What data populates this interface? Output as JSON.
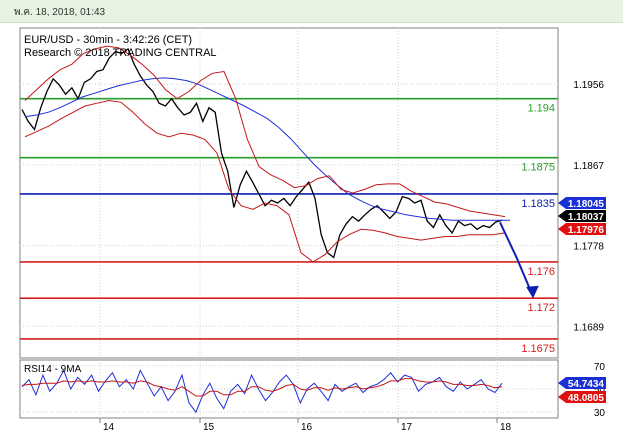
{
  "header": {
    "timestamp": "พ.ค. 18, 2018, 01:43"
  },
  "chart_data": [
    {
      "type": "line",
      "title": "EUR/USD - 30min - 3:42:26 (CET)",
      "subtitle": "Research © 2018 TRADING CENTRAL",
      "ylim": [
        1.1654,
        1.2018
      ],
      "y_ticks": [
        1.1956,
        1.1867,
        1.1778,
        1.1689
      ],
      "x_ticks": [
        "14",
        "15",
        "16",
        "17",
        "18"
      ],
      "levels": [
        {
          "value": 1.194,
          "label": "1.194",
          "color": "#2a9d2a"
        },
        {
          "value": 1.1875,
          "label": "1.1875",
          "color": "#2a9d2a"
        },
        {
          "value": 1.1835,
          "label": "1.1835",
          "color": "#0b1fb0"
        },
        {
          "value": 1.176,
          "label": "1.176",
          "color": "#d42020"
        },
        {
          "value": 1.172,
          "label": "1.172",
          "color": "#d42020"
        },
        {
          "value": 1.1675,
          "label": "1.1675",
          "color": "#d42020"
        }
      ],
      "price_tags": [
        {
          "label": "1.18045",
          "value": 1.18045,
          "color": "#1b2fd6"
        },
        {
          "label": "1.18037",
          "value": 1.18037,
          "color": "#000000"
        },
        {
          "label": "1.17976",
          "value": 1.17976,
          "color": "#e01010"
        }
      ],
      "series": [
        {
          "name": "",
          "color": "#000000",
          "values": [
            1.1928,
            1.1915,
            1.1906,
            1.193,
            1.1948,
            1.1962,
            1.1955,
            1.1945,
            1.1952,
            1.194,
            1.1958,
            1.1962,
            1.197,
            1.1972,
            1.1985,
            1.1992,
            1.199,
            1.1995,
            1.1978,
            1.1965,
            1.1955,
            1.1948,
            1.1935,
            1.1932,
            1.194,
            1.193,
            1.1922,
            1.1925,
            1.1935,
            1.1915,
            1.193,
            1.1925,
            1.188,
            1.186,
            1.182,
            1.1845,
            1.186,
            1.1848,
            1.1835,
            1.1822,
            1.1828,
            1.1825,
            1.183,
            1.1822,
            1.1832,
            1.184,
            1.1848,
            1.183,
            1.179,
            1.177,
            1.1765,
            1.179,
            1.1802,
            1.181,
            1.1805,
            1.1812,
            1.1818,
            1.1822,
            1.1815,
            1.1808,
            1.1815,
            1.1832,
            1.183,
            1.1825,
            1.1828,
            1.1805,
            1.1798,
            1.1812,
            1.18,
            1.1792,
            1.1805,
            1.18,
            1.1802,
            1.1796,
            1.18,
            1.1798,
            1.1804,
            1.1806
          ]
        },
        {
          "name": "",
          "color": "#1e2fd6",
          "values": [
            1.192,
            1.1922,
            1.1925,
            1.193,
            1.1936,
            1.1942,
            1.1946,
            1.195,
            1.1954,
            1.1957,
            1.196,
            1.1962,
            1.1963,
            1.1962,
            1.196,
            1.1956,
            1.195,
            1.1944,
            1.1938,
            1.1932,
            1.1925,
            1.1918,
            1.1908,
            1.1896,
            1.1882,
            1.1868,
            1.1856,
            1.1845,
            1.1835,
            1.1828,
            1.1822,
            1.1818,
            1.1815,
            1.1812,
            1.181,
            1.1808,
            1.1807,
            1.1806,
            1.1806,
            1.1806,
            1.1806,
            1.1806,
            1.1806
          ]
        },
        {
          "name": "",
          "color": "#c41818",
          "values": [
            1.1938,
            1.195,
            1.1962,
            1.1972,
            1.1978,
            1.199,
            1.1995,
            1.1998,
            1.1996,
            1.1988,
            1.1978,
            1.1966,
            1.195,
            1.194,
            1.1948,
            1.196,
            1.1968,
            1.197,
            1.194,
            1.1895,
            1.1865,
            1.1856,
            1.185,
            1.1842,
            1.1844,
            1.1852,
            1.1855,
            1.184,
            1.1836,
            1.184,
            1.1845,
            1.1846,
            1.1846,
            1.1838,
            1.1832,
            1.1826,
            1.1824,
            1.182,
            1.1816,
            1.1814,
            1.1812,
            1.181
          ]
        },
        {
          "name": "",
          "color": "#c41818",
          "values": [
            1.1898,
            1.1904,
            1.191,
            1.1918,
            1.1925,
            1.1932,
            1.1935,
            1.1938,
            1.1936,
            1.1925,
            1.1912,
            1.1902,
            1.1898,
            1.1902,
            1.19,
            1.1895,
            1.188,
            1.184,
            1.1822,
            1.1818,
            1.1825,
            1.1822,
            1.1812,
            1.177,
            1.176,
            1.1768,
            1.1782,
            1.179,
            1.1796,
            1.1795,
            1.1792,
            1.1788,
            1.1786,
            1.1784,
            1.1786,
            1.1788,
            1.1788,
            1.179,
            1.179,
            1.179,
            1.1792
          ]
        },
        {
          "name": "",
          "color": "#0b1fb0",
          "values": [
            1.18037,
            1.1765,
            1.1722
          ]
        }
      ]
    },
    {
      "type": "line",
      "title": "RSI14 - 9MA",
      "ylim": [
        25,
        75
      ],
      "y_ticks": [
        70,
        50,
        30
      ],
      "price_tags": [
        {
          "label": "54.7434",
          "value": 54.7434,
          "color": "#1b2fd6"
        },
        {
          "label": "48.0805",
          "value": 48.0805,
          "color": "#e01010"
        }
      ],
      "series": [
        {
          "name": "",
          "color": "#1e2fd6",
          "values": [
            52,
            58,
            45,
            62,
            48,
            55,
            66,
            50,
            60,
            54,
            62,
            48,
            57,
            64,
            52,
            58,
            50,
            66,
            55,
            44,
            52,
            40,
            48,
            62,
            38,
            30,
            45,
            55,
            42,
            33,
            48,
            54,
            46,
            62,
            50,
            40,
            47,
            56,
            62,
            54,
            38,
            50,
            55,
            48,
            40,
            54,
            48,
            52,
            55,
            47,
            52,
            54,
            58,
            64,
            56,
            62,
            60,
            48,
            54,
            56,
            60,
            52,
            48,
            56,
            50,
            54,
            58,
            50,
            47,
            55
          ]
        },
        {
          "name": "",
          "color": "#c41818",
          "values": [
            53,
            54,
            54,
            55,
            55,
            55,
            57,
            56,
            57,
            56,
            57,
            56,
            56,
            57,
            56,
            56,
            55,
            57,
            56,
            53,
            52,
            50,
            49,
            52,
            48,
            44,
            44,
            48,
            48,
            45,
            45,
            48,
            48,
            52,
            52,
            49,
            48,
            50,
            53,
            54,
            50,
            49,
            51,
            51,
            49,
            51,
            50,
            51,
            52,
            50,
            51,
            52,
            54,
            57,
            57,
            59,
            59,
            57,
            56,
            56,
            57,
            56,
            54,
            54,
            53,
            53,
            54,
            53,
            51,
            52
          ]
        }
      ]
    }
  ]
}
